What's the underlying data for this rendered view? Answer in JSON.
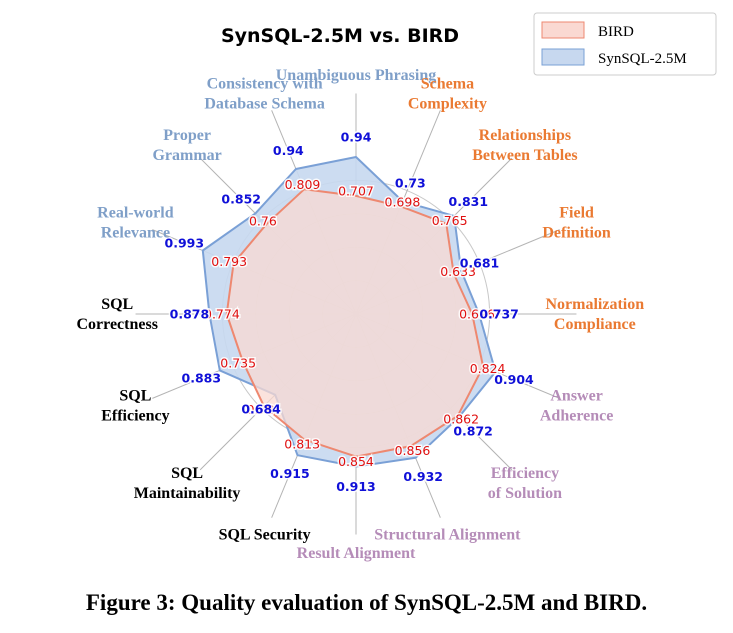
{
  "chart_data": {
    "type": "radar",
    "title": "SynSQL-2.5M vs. BIRD",
    "rmax": 1.0,
    "rings": [
      0.2,
      0.4,
      0.6,
      0.8
    ],
    "grid": true,
    "legend_position": "top-right",
    "categories": [
      "Unambiguous Phrasing",
      "Schema Complexity",
      "Relationships Between Tables",
      "Field Definition",
      "Normalization Compliance",
      "Answer Adherence",
      "Efficiency of Solution",
      "Structural Alignment",
      "Result Alignment",
      "SQL Security",
      "SQL Maintainability",
      "SQL Efficiency",
      "SQL Correctness",
      "Real-world Relevance",
      "Proper Grammar",
      "Consistency with Database Schema"
    ],
    "category_lines": [
      [
        "Unambiguous Phrasing"
      ],
      [
        "Schema",
        "Complexity"
      ],
      [
        "Relationships",
        "Between Tables"
      ],
      [
        "Field",
        "Definition"
      ],
      [
        "Normalization",
        "Compliance"
      ],
      [
        "Answer",
        "Adherence"
      ],
      [
        "Efficiency",
        "of Solution"
      ],
      [
        "Structural Alignment"
      ],
      [
        "Result Alignment"
      ],
      [
        "SQL Security"
      ],
      [
        "SQL",
        "Maintainability"
      ],
      [
        "SQL",
        "Efficiency"
      ],
      [
        "SQL",
        "Correctness"
      ],
      [
        "Real-world",
        "Relevance"
      ],
      [
        "Proper",
        "Grammar"
      ],
      [
        "Consistency with",
        "Database Schema"
      ]
    ],
    "category_colors": [
      "#7f9fc8",
      "#ea7a32",
      "#ea7a32",
      "#ea7a32",
      "#ea7a32",
      "#b58cb8",
      "#b58cb8",
      "#b58cb8",
      "#b58cb8",
      "#000000",
      "#000000",
      "#000000",
      "#000000",
      "#7f9fc8",
      "#7f9fc8",
      "#7f9fc8"
    ],
    "series": [
      {
        "name": "BIRD",
        "values": [
          0.707,
          0.698,
          0.765,
          0.633,
          0.696,
          0.824,
          0.862,
          0.856,
          0.854,
          0.813,
          0.78,
          0.735,
          0.774,
          0.793,
          0.76,
          0.809
        ],
        "labels": [
          "0.707",
          "0.698",
          "0.765",
          "0.633",
          "0.696",
          "0.824",
          "0.862",
          "0.856",
          "0.854",
          "0.813",
          "0.78",
          "0.735",
          "0.774",
          "0.793",
          "0.76",
          "0.809"
        ],
        "fill": "#fad9d2",
        "stroke": "#ee8870",
        "label_color": "#e01010"
      },
      {
        "name": "SynSQL-2.5M",
        "values": [
          0.94,
          0.73,
          0.831,
          0.681,
          0.737,
          0.904,
          0.872,
          0.932,
          0.913,
          0.915,
          0.684,
          0.883,
          0.878,
          0.993,
          0.852,
          0.94
        ],
        "labels": [
          "0.94",
          "0.73",
          "0.831",
          "0.681",
          "0.737",
          "0.904",
          "0.872",
          "0.932",
          "0.913",
          "0.915",
          "0.684",
          "0.883",
          "0.878",
          "0.993",
          "0.852",
          "0.94"
        ],
        "fill": "#c7d8ef",
        "stroke": "#7aa0d6",
        "label_color": "#1010d8"
      }
    ]
  },
  "caption": "Figure 3:  Quality evaluation of SynSQL-2.5M and BIRD."
}
